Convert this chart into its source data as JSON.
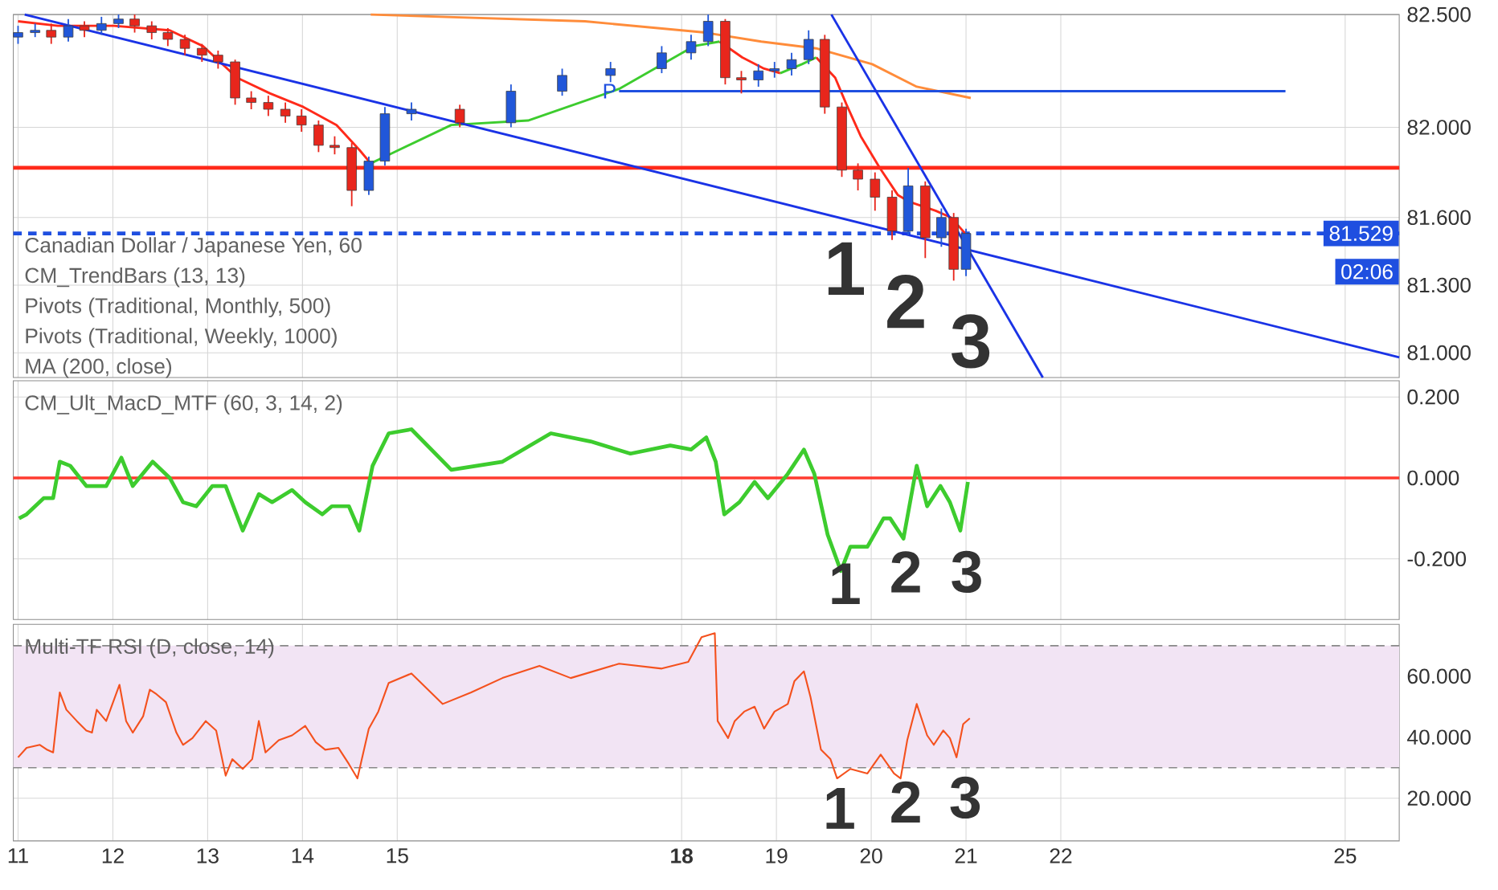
{
  "chart_data": [
    {
      "type": "candlestick",
      "title": "Canadian Dollar / Japanese Yen, 60",
      "x": [
        11,
        11.18,
        11.35,
        11.53,
        11.7,
        11.88,
        12.06,
        12.23,
        12.41,
        12.58,
        12.76,
        12.94,
        13.11,
        13.29,
        13.46,
        13.64,
        13.82,
        13.99,
        14.17,
        14.34,
        14.52,
        14.7,
        14.87,
        15.15,
        15.66,
        16.2,
        16.74,
        17.25,
        17.79,
        18.1,
        18.28,
        18.46,
        18.63,
        18.81,
        18.98,
        19.16,
        19.34,
        19.51,
        19.69,
        19.86,
        20.04,
        20.22,
        20.39,
        20.57,
        20.74,
        20.87,
        21.0
      ],
      "ohlc": [
        [
          82.4,
          82.45,
          82.37,
          82.42
        ],
        [
          82.42,
          82.46,
          82.4,
          82.43
        ],
        [
          82.43,
          82.46,
          82.37,
          82.4
        ],
        [
          82.4,
          82.48,
          82.38,
          82.45
        ],
        [
          82.45,
          82.47,
          82.4,
          82.43
        ],
        [
          82.43,
          82.49,
          82.41,
          82.46
        ],
        [
          82.46,
          82.5,
          82.44,
          82.48
        ],
        [
          82.48,
          82.5,
          82.42,
          82.45
        ],
        [
          82.45,
          82.47,
          82.39,
          82.42
        ],
        [
          82.42,
          82.44,
          82.36,
          82.39
        ],
        [
          82.39,
          82.41,
          82.32,
          82.35
        ],
        [
          82.35,
          82.37,
          82.29,
          82.32
        ],
        [
          82.32,
          82.34,
          82.26,
          82.29
        ],
        [
          82.29,
          82.3,
          82.1,
          82.13
        ],
        [
          82.13,
          82.16,
          82.08,
          82.11
        ],
        [
          82.11,
          82.14,
          82.05,
          82.08
        ],
        [
          82.08,
          82.11,
          82.02,
          82.05
        ],
        [
          82.05,
          82.08,
          81.98,
          82.01
        ],
        [
          82.01,
          82.03,
          81.89,
          81.92
        ],
        [
          81.92,
          81.96,
          81.88,
          81.91
        ],
        [
          81.91,
          81.93,
          81.65,
          81.72
        ],
        [
          81.72,
          81.87,
          81.7,
          81.85
        ],
        [
          81.85,
          82.09,
          81.83,
          82.06
        ],
        [
          82.06,
          82.11,
          82.03,
          82.08
        ],
        [
          82.08,
          82.1,
          82.0,
          82.02
        ],
        [
          82.02,
          82.19,
          82.0,
          82.16
        ],
        [
          82.16,
          82.26,
          82.14,
          82.23
        ],
        [
          82.23,
          82.29,
          82.2,
          82.26
        ],
        [
          82.26,
          82.36,
          82.24,
          82.33
        ],
        [
          82.33,
          82.41,
          82.3,
          82.38
        ],
        [
          82.38,
          82.5,
          82.36,
          82.47
        ],
        [
          82.47,
          82.48,
          82.19,
          82.22
        ],
        [
          82.22,
          82.25,
          82.15,
          82.21
        ],
        [
          82.21,
          82.28,
          82.18,
          82.25
        ],
        [
          82.25,
          82.29,
          82.22,
          82.26
        ],
        [
          82.26,
          82.33,
          82.23,
          82.3
        ],
        [
          82.3,
          82.43,
          82.28,
          82.39
        ],
        [
          82.39,
          82.41,
          82.06,
          82.09
        ],
        [
          82.09,
          82.11,
          81.78,
          81.81
        ],
        [
          81.81,
          81.84,
          81.72,
          81.77
        ],
        [
          81.77,
          81.8,
          81.63,
          81.69
        ],
        [
          81.69,
          81.72,
          81.5,
          81.54
        ],
        [
          81.54,
          81.82,
          81.52,
          81.74
        ],
        [
          81.74,
          81.76,
          81.42,
          81.51
        ],
        [
          81.51,
          81.64,
          81.47,
          81.6
        ],
        [
          81.6,
          81.62,
          81.32,
          81.37
        ],
        [
          81.37,
          81.55,
          81.34,
          81.529
        ]
      ],
      "colors": [
        "#2157d9",
        "#2157d9",
        "#e8261c",
        "#2157d9",
        "#e8261c",
        "#2157d9",
        "#2157d9",
        "#e8261c",
        "#e8261c",
        "#e8261c",
        "#e8261c",
        "#e8261c",
        "#e8261c",
        "#e8261c",
        "#e8261c",
        "#e8261c",
        "#e8261c",
        "#e8261c",
        "#e8261c",
        "#e8261c",
        "#e8261c",
        "#2157d9",
        "#2157d9",
        "#2157d9",
        "#e8261c",
        "#2157d9",
        "#2157d9",
        "#2157d9",
        "#2157d9",
        "#2157d9",
        "#2157d9",
        "#e8261c",
        "#e8261c",
        "#2157d9",
        "#2157d9",
        "#2157d9",
        "#2157d9",
        "#e8261c",
        "#e8261c",
        "#e8261c",
        "#e8261c",
        "#e8261c",
        "#2157d9",
        "#e8261c",
        "#2157d9",
        "#e8261c",
        "#2157d9"
      ],
      "series": [
        {
          "type": "line",
          "color": "#ff2a1a",
          "x": [
            11.0,
            11.42,
            12.01,
            12.6,
            12.95,
            13.31,
            13.66,
            14.01,
            14.36,
            14.6,
            14.72,
            16.5,
            18.4,
            18.64,
            18.87,
            19.04,
            19.2,
            19.42,
            19.62,
            19.74,
            19.89,
            20.09,
            20.28,
            20.4,
            20.68,
            20.84,
            20.99
          ],
          "values": [
            82.47,
            82.45,
            82.45,
            82.43,
            82.36,
            82.22,
            82.15,
            82.09,
            82.01,
            81.9,
            81.84,
            null,
            82.38,
            82.31,
            82.26,
            82.24,
            null,
            82.31,
            82.22,
            82.1,
            81.96,
            81.82,
            81.7,
            81.67,
            81.63,
            81.6,
            81.53
          ]
        },
        {
          "type": "line",
          "color": "#3dcc2e",
          "x": [
            14.72,
            14.87,
            15.57,
            16.38,
            17.34,
            18.13,
            18.4,
            18.8,
            19.04,
            19.27,
            19.42
          ],
          "values": [
            81.84,
            81.87,
            82.01,
            82.03,
            82.17,
            82.36,
            82.38,
            null,
            82.24,
            82.28,
            82.31
          ]
        },
        {
          "type": "line",
          "color": "#ff8c3a",
          "x": [
            14.72,
            16.98,
            18.25,
            18.84,
            19.42,
            20.01,
            20.48,
            21.05
          ],
          "values": [
            82.5,
            82.47,
            82.42,
            82.38,
            82.35,
            82.28,
            82.18,
            82.13
          ]
        },
        {
          "type": "line",
          "name": "P",
          "color": "#1f4fe0",
          "x": [
            17.34,
            24.37
          ],
          "values": [
            82.16,
            82.16
          ]
        },
        {
          "type": "line",
          "color": "#1a33e6",
          "x": [
            11.07,
            25.57
          ],
          "values": [
            82.5,
            80.98
          ]
        },
        {
          "type": "line",
          "color": "#1a33e6",
          "x": [
            19.58,
            21.81
          ],
          "values": [
            82.5,
            80.89
          ]
        }
      ],
      "ref_lines": [
        {
          "axis": "y",
          "value": 81.82,
          "color": "#ff2a1a"
        },
        {
          "axis": "y",
          "value": 81.529,
          "label": "81.529",
          "color": "#1f4fe0",
          "line_style": "dashed"
        }
      ],
      "annotations": [
        "CM_TrendBars (13, 13)",
        "Pivots (Traditional, Monthly, 500)",
        "Pivots (Traditional, Weekly, 1000)",
        "MA (200, close)",
        "02:06",
        "1",
        "2",
        "3"
      ],
      "xlim": [
        10.95,
        25.57
      ],
      "ylim": [
        80.89,
        82.5
      ],
      "xticks": [
        11,
        12,
        13,
        14,
        15,
        18,
        19,
        20,
        21,
        22,
        25
      ],
      "yticks": [
        {
          "value": 82.5,
          "label": "82.500"
        },
        {
          "value": 82,
          "label": "82.000"
        },
        {
          "value": 81.6,
          "label": "81.600"
        },
        {
          "value": 81.3,
          "label": "81.300"
        },
        {
          "value": 81,
          "label": "81.000"
        }
      ],
      "grid": true,
      "tick_labels": "y"
    },
    {
      "type": "line",
      "title": "CM_Ult_MacD_MTF (60, 3, 14, 2)",
      "series": [
        {
          "color": "#3dcc2e",
          "x": [
            11.01,
            11.09,
            11.27,
            11.37,
            11.44,
            11.55,
            11.72,
            11.93,
            12.09,
            12.21,
            12.42,
            12.6,
            12.74,
            12.88,
            13.05,
            13.19,
            13.37,
            13.54,
            13.68,
            13.89,
            14.03,
            14.21,
            14.31,
            14.49,
            14.6,
            14.74,
            14.91,
            15.15,
            15.57,
            16.11,
            16.62,
            17.04,
            17.46,
            17.88,
            18.1,
            18.26,
            18.36,
            18.45,
            18.61,
            18.77,
            18.91,
            19.12,
            19.29,
            19.4,
            19.54,
            19.68,
            19.78,
            19.96,
            20.13,
            20.2,
            20.34,
            20.48,
            20.59,
            20.73,
            20.83,
            20.94,
            21.02
          ],
          "values": [
            -0.1,
            -0.09,
            -0.05,
            -0.05,
            0.04,
            0.03,
            -0.02,
            -0.02,
            0.05,
            -0.02,
            0.04,
            0.0,
            -0.06,
            -0.07,
            -0.02,
            -0.02,
            -0.13,
            -0.04,
            -0.06,
            -0.03,
            -0.06,
            -0.09,
            -0.07,
            -0.07,
            -0.13,
            0.03,
            0.11,
            0.12,
            0.02,
            0.04,
            0.11,
            0.09,
            0.06,
            0.08,
            0.07,
            0.1,
            0.04,
            -0.09,
            -0.06,
            -0.01,
            -0.05,
            0.01,
            0.07,
            0.01,
            -0.14,
            -0.23,
            -0.17,
            -0.17,
            -0.1,
            -0.1,
            -0.15,
            0.03,
            -0.07,
            -0.02,
            -0.06,
            -0.13,
            -0.01
          ]
        }
      ],
      "ref_lines": [
        {
          "axis": "y",
          "value": 0,
          "color": "#ff3b30"
        }
      ],
      "annotations": [
        "1",
        "2",
        "3"
      ],
      "xlim": [
        10.95,
        25.57
      ],
      "ylim": [
        -0.35,
        0.24
      ],
      "xticks": [
        11,
        12,
        13,
        14,
        15,
        18,
        19,
        20,
        21,
        22,
        25
      ],
      "yticks": [
        {
          "value": 0.2,
          "label": "0.200"
        },
        {
          "value": 0,
          "label": "0.000"
        },
        {
          "value": -0.2,
          "label": "-0.200"
        }
      ],
      "grid": true,
      "tick_labels": "y"
    },
    {
      "type": "line",
      "title": "Multi-TF RSI (D, close, 14)",
      "series": [
        {
          "color": "#f4511e",
          "x": [
            11.0,
            11.09,
            11.23,
            11.3,
            11.37,
            11.44,
            11.51,
            11.62,
            11.72,
            11.78,
            11.83,
            11.93,
            12.07,
            12.14,
            12.21,
            12.32,
            12.39,
            12.46,
            12.56,
            12.67,
            12.74,
            12.84,
            12.98,
            13.09,
            13.19,
            13.26,
            13.37,
            13.47,
            13.54,
            13.61,
            13.75,
            13.89,
            14.03,
            14.14,
            14.24,
            14.38,
            14.49,
            14.58,
            14.7,
            14.8,
            14.91,
            15.15,
            15.48,
            15.78,
            16.11,
            16.5,
            16.83,
            17.34,
            17.79,
            18.07,
            18.21,
            18.35,
            18.38,
            18.49,
            18.56,
            18.66,
            18.77,
            18.87,
            18.98,
            19.12,
            19.19,
            19.29,
            19.36,
            19.47,
            19.57,
            19.64,
            19.78,
            19.96,
            20.1,
            20.24,
            20.31,
            20.38,
            20.48,
            20.59,
            20.66,
            20.76,
            20.83,
            20.9,
            20.97,
            21.04
          ],
          "values": [
            33.4,
            36.5,
            37.5,
            36.0,
            35.0,
            54.7,
            49.0,
            45.3,
            42.2,
            41.5,
            49.0,
            45.3,
            57.2,
            45.3,
            41.5,
            46.9,
            55.6,
            54.1,
            51.5,
            41.5,
            37.5,
            39.7,
            45.3,
            42.2,
            27.4,
            32.8,
            29.6,
            32.8,
            45.3,
            35.0,
            39.0,
            40.6,
            43.7,
            38.4,
            35.9,
            36.5,
            31.2,
            26.5,
            42.8,
            48.4,
            57.8,
            60.9,
            50.9,
            54.7,
            59.4,
            63.4,
            59.4,
            64.1,
            62.5,
            64.7,
            72.8,
            74.1,
            45.3,
            39.7,
            45.3,
            48.4,
            50.0,
            42.8,
            48.4,
            50.9,
            58.4,
            61.6,
            53.1,
            35.9,
            32.8,
            26.5,
            29.6,
            28.1,
            34.3,
            28.1,
            26.5,
            39.0,
            50.9,
            40.6,
            37.5,
            42.2,
            39.7,
            33.4,
            44.3,
            46.2
          ]
        }
      ],
      "bands": [
        {
          "axis": "y",
          "from": 30,
          "to": 70,
          "color": "#f2e4f4"
        }
      ],
      "ref_lines": [
        {
          "axis": "y",
          "value": 70,
          "color": "#888888",
          "line_style": "dashed"
        },
        {
          "axis": "y",
          "value": 30,
          "color": "#888888",
          "line_style": "dashed"
        }
      ],
      "annotations": [
        "1",
        "2",
        "3"
      ],
      "xlim": [
        10.95,
        25.57
      ],
      "ylim": [
        6,
        77
      ],
      "xticks": [
        11,
        12,
        13,
        14,
        15,
        {
          "value": 18,
          "label": "**18**"
        },
        19,
        20,
        21,
        22,
        25
      ],
      "yticks": [
        {
          "value": 60,
          "label": "60.000"
        },
        {
          "value": 40,
          "label": "40.000"
        },
        {
          "value": 20,
          "label": "20.000"
        }
      ],
      "grid": true
    }
  ]
}
